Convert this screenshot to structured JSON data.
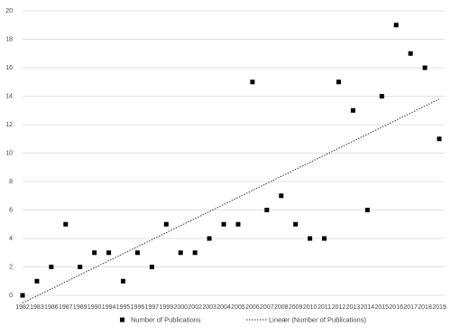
{
  "chart_data": {
    "type": "scatter",
    "categories": [
      "1982",
      "1983",
      "1986",
      "1987",
      "1989",
      "1990",
      "1994",
      "1995",
      "1996",
      "1997",
      "1999",
      "2000",
      "2002",
      "2003",
      "2004",
      "2005",
      "2006",
      "2007",
      "2008",
      "2009",
      "2010",
      "2011",
      "2012",
      "2013",
      "2014",
      "2015",
      "2016",
      "2017",
      "2018",
      "2019"
    ],
    "series": [
      {
        "name": "Number of Publications",
        "color": "#000000",
        "values": [
          0,
          1,
          2,
          5,
          2,
          3,
          3,
          1,
          3,
          2,
          5,
          3,
          3,
          4,
          5,
          5,
          15,
          6,
          7,
          5,
          4,
          4,
          15,
          13,
          6,
          14,
          19,
          17,
          16,
          11
        ]
      }
    ],
    "trendline": {
      "name": "Lineær (Number of Publications)",
      "kind": "linear",
      "color": "#333333"
    },
    "ylim": [
      0,
      20
    ],
    "yticks": [
      0,
      2,
      4,
      6,
      8,
      10,
      12,
      14,
      16,
      18,
      20
    ],
    "grid": true
  }
}
